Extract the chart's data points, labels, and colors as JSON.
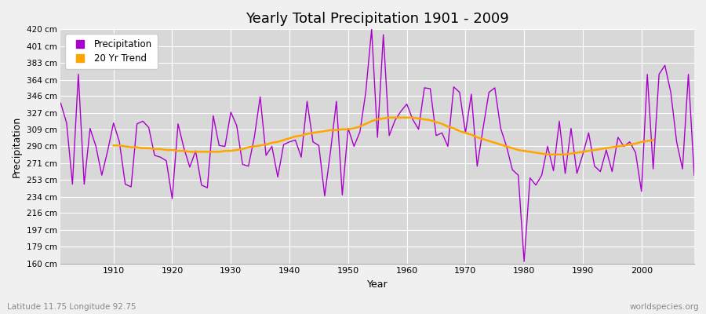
{
  "title": "Yearly Total Precipitation 1901 - 2009",
  "xlabel": "Year",
  "ylabel": "Precipitation",
  "subtitle": "Latitude 11.75 Longitude 92.75",
  "watermark": "worldspecies.org",
  "fig_bg_color": "#f0f0f0",
  "plot_bg_color": "#d8d8d8",
  "precip_color": "#aa00cc",
  "trend_color": "#ffa500",
  "ylim": [
    160,
    420
  ],
  "xlim": [
    1901,
    2009
  ],
  "yticks": [
    160,
    179,
    197,
    216,
    234,
    253,
    271,
    290,
    309,
    327,
    346,
    364,
    383,
    401,
    420
  ],
  "xticks": [
    1910,
    1920,
    1930,
    1940,
    1950,
    1960,
    1970,
    1980,
    1990,
    2000
  ],
  "years": [
    1901,
    1902,
    1903,
    1904,
    1905,
    1906,
    1907,
    1908,
    1909,
    1910,
    1911,
    1912,
    1913,
    1914,
    1915,
    1916,
    1917,
    1918,
    1919,
    1920,
    1921,
    1922,
    1923,
    1924,
    1925,
    1926,
    1927,
    1928,
    1929,
    1930,
    1931,
    1932,
    1933,
    1934,
    1935,
    1936,
    1937,
    1938,
    1939,
    1940,
    1941,
    1942,
    1943,
    1944,
    1945,
    1946,
    1947,
    1948,
    1949,
    1950,
    1951,
    1952,
    1953,
    1954,
    1955,
    1956,
    1957,
    1958,
    1959,
    1960,
    1961,
    1962,
    1963,
    1964,
    1965,
    1966,
    1967,
    1968,
    1969,
    1970,
    1971,
    1972,
    1973,
    1974,
    1975,
    1976,
    1977,
    1978,
    1979,
    1980,
    1981,
    1982,
    1983,
    1984,
    1985,
    1986,
    1987,
    1988,
    1989,
    1990,
    1991,
    1992,
    1993,
    1994,
    1995,
    1996,
    1997,
    1998,
    1999,
    2000,
    2001,
    2002,
    2003,
    2004,
    2005,
    2006,
    2007,
    2008,
    2009
  ],
  "precipitation": [
    338,
    316,
    248,
    370,
    248,
    310,
    290,
    258,
    285,
    316,
    295,
    248,
    245,
    315,
    318,
    311,
    280,
    278,
    274,
    232,
    315,
    288,
    267,
    285,
    247,
    244,
    324,
    291,
    290,
    328,
    313,
    270,
    268,
    300,
    345,
    280,
    290,
    256,
    292,
    295,
    297,
    278,
    340,
    295,
    291,
    235,
    285,
    340,
    236,
    310,
    290,
    306,
    350,
    420,
    300,
    414,
    302,
    319,
    329,
    337,
    320,
    309,
    355,
    354,
    302,
    305,
    290,
    356,
    350,
    305,
    348,
    268,
    310,
    350,
    355,
    310,
    290,
    264,
    258,
    162,
    255,
    247,
    258,
    290,
    263,
    318,
    260,
    310,
    260,
    281,
    305,
    268,
    262,
    286,
    262,
    300,
    290,
    295,
    283,
    240,
    370,
    265,
    370,
    380,
    350,
    295,
    265,
    370,
    258
  ],
  "trend": [
    null,
    null,
    null,
    null,
    null,
    null,
    null,
    null,
    null,
    291,
    291,
    290,
    289,
    289,
    288,
    288,
    287,
    287,
    286,
    286,
    285,
    285,
    284,
    284,
    284,
    284,
    284,
    284,
    285,
    285,
    286,
    287,
    289,
    290,
    291,
    292,
    294,
    295,
    297,
    299,
    301,
    302,
    304,
    305,
    306,
    307,
    308,
    308,
    309,
    309,
    310,
    312,
    315,
    318,
    320,
    321,
    322,
    322,
    322,
    322,
    322,
    321,
    320,
    319,
    317,
    315,
    312,
    310,
    307,
    305,
    303,
    300,
    298,
    296,
    294,
    292,
    290,
    288,
    286,
    285,
    284,
    283,
    282,
    281,
    281,
    281,
    281,
    282,
    283,
    284,
    285,
    286,
    287,
    288,
    289,
    290,
    291,
    292,
    293,
    295,
    296,
    297,
    null,
    null,
    null,
    null,
    null,
    null,
    null
  ]
}
